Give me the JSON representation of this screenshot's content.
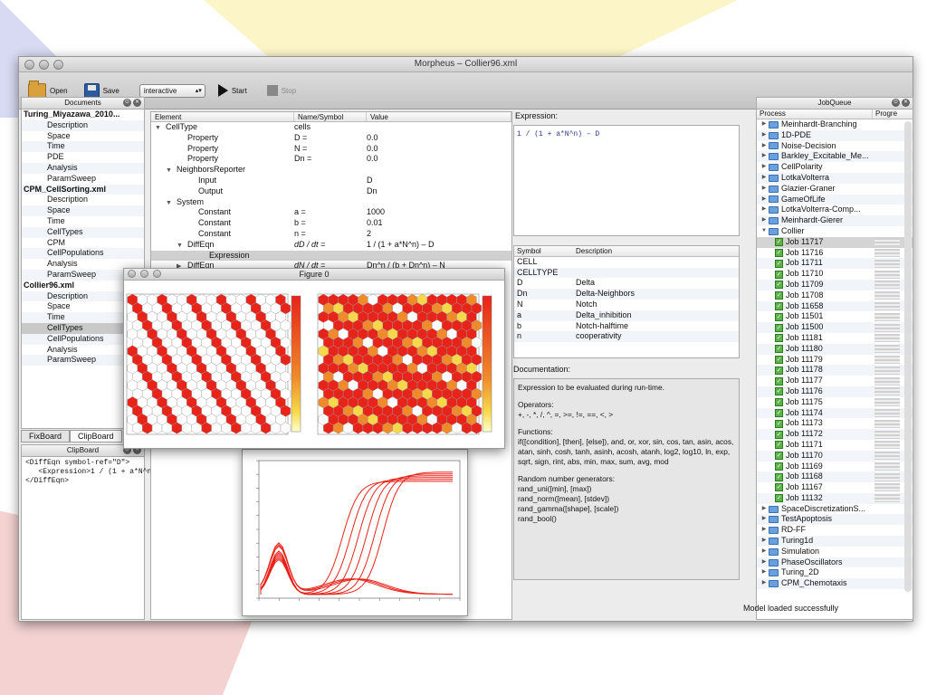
{
  "window": {
    "title": "Morpheus – Collier96.xml"
  },
  "toolbar": {
    "open": "Open",
    "save": "Save",
    "mode": "interactive",
    "start": "Start",
    "stop": "Stop"
  },
  "documents": {
    "title": "Documents",
    "items": [
      {
        "label": "Turing_Miyazawa_2010...",
        "type": "hdr"
      },
      {
        "label": "Description",
        "type": "sub"
      },
      {
        "label": "Space",
        "type": "sub"
      },
      {
        "label": "Time",
        "type": "sub"
      },
      {
        "label": "PDE",
        "type": "sub"
      },
      {
        "label": "Analysis",
        "type": "sub"
      },
      {
        "label": "ParamSweep",
        "type": "sub"
      },
      {
        "label": "CPM_CellSorting.xml",
        "type": "hdr"
      },
      {
        "label": "Description",
        "type": "sub"
      },
      {
        "label": "Space",
        "type": "sub"
      },
      {
        "label": "Time",
        "type": "sub"
      },
      {
        "label": "CellTypes",
        "type": "sub"
      },
      {
        "label": "CPM",
        "type": "sub"
      },
      {
        "label": "CellPopulations",
        "type": "sub"
      },
      {
        "label": "Analysis",
        "type": "sub"
      },
      {
        "label": "ParamSweep",
        "type": "sub"
      },
      {
        "label": "Collier96.xml",
        "type": "hdr"
      },
      {
        "label": "Description",
        "type": "sub"
      },
      {
        "label": "Space",
        "type": "sub"
      },
      {
        "label": "Time",
        "type": "sub"
      },
      {
        "label": "CellTypes",
        "type": "sub sel"
      },
      {
        "label": "CellPopulations",
        "type": "sub"
      },
      {
        "label": "Analysis",
        "type": "sub"
      },
      {
        "label": "ParamSweep",
        "type": "sub"
      }
    ]
  },
  "tabs": [
    "FixBoard",
    "ClipBoard"
  ],
  "clipboard": {
    "title": "ClipBoard",
    "content": "<DiffEqn symbol-ref=\"D\">\n   <Expression>1 / (1 + a*N^n) – D\n</DiffEqn>"
  },
  "tree": {
    "columns": [
      "Element",
      "Name/Symbol",
      "Value"
    ],
    "rows": [
      {
        "indent": 0,
        "tri": "▼",
        "el": "CellType",
        "name": "cells",
        "val": ""
      },
      {
        "indent": 2,
        "tri": "",
        "el": "Property",
        "name": "D =",
        "val": "0.0"
      },
      {
        "indent": 2,
        "tri": "",
        "el": "Property",
        "name": "N =",
        "val": "0.0"
      },
      {
        "indent": 2,
        "tri": "",
        "el": "Property",
        "name": "Dn =",
        "val": "0.0"
      },
      {
        "indent": 1,
        "tri": "▼",
        "el": "NeighborsReporter",
        "name": "",
        "val": ""
      },
      {
        "indent": 3,
        "tri": "",
        "el": "Input",
        "name": "",
        "val": "D"
      },
      {
        "indent": 3,
        "tri": "",
        "el": "Output",
        "name": "",
        "val": "Dn"
      },
      {
        "indent": 1,
        "tri": "▼",
        "el": "System",
        "name": "",
        "val": ""
      },
      {
        "indent": 3,
        "tri": "",
        "el": "Constant",
        "name": "a =",
        "val": "1000"
      },
      {
        "indent": 3,
        "tri": "",
        "el": "Constant",
        "name": "b =",
        "val": "0.01"
      },
      {
        "indent": 3,
        "tri": "",
        "el": "Constant",
        "name": "n =",
        "val": "2"
      },
      {
        "indent": 2,
        "tri": "▼",
        "el": "DiffEqn",
        "name": "dD / dt =",
        "val": "1 / (1 + a*N^n) – D"
      },
      {
        "indent": 4,
        "tri": "",
        "el": "Expression",
        "name": "",
        "val": "",
        "sel": true
      },
      {
        "indent": 2,
        "tri": "▶",
        "el": "DiffEqn",
        "name": "dN / dt =",
        "val": "Dn^n / (b + Dn^n) – N"
      }
    ]
  },
  "expression": {
    "label": "Expression:",
    "value": "1 / (1 + a*N^n) – D"
  },
  "symbols": {
    "columns": [
      "Symbol",
      "Description"
    ],
    "rows": [
      [
        "CELL",
        ""
      ],
      [
        "CELLTYPE",
        ""
      ],
      [
        "D",
        "Delta"
      ],
      [
        "Dn",
        "Delta-Neighbors"
      ],
      [
        "N",
        "Notch"
      ],
      [
        "a",
        "Delta_inhibition"
      ],
      [
        "b",
        "Notch-halftime"
      ],
      [
        "n",
        "cooperativity"
      ]
    ]
  },
  "documentation": {
    "label": "Documentation:",
    "intro": "Expression to be evaluated during run-time.",
    "operators_title": "Operators:",
    "operators": "+, -, *, /, ^, =, >=, !=, ==, <, >",
    "functions_title": "Functions:",
    "functions": "if([condition], [then], [else]), and, or, xor, sin, cos, tan, asin, acos, atan, sinh, cosh, tanh, asinh, acosh, atanh, log2, log10, ln, exp, sqrt, sign, rint, abs, min, max, sum, avg, mod",
    "random_title": "Random number generators:",
    "random": [
      "rand_uni([min], [max])",
      "rand_norm([mean], [stdev])",
      "rand_gamma([shape], [scale])",
      "rand_bool()"
    ]
  },
  "jobqueue": {
    "title": "JobQueue",
    "columns": [
      "Process",
      "Progre"
    ],
    "items": [
      {
        "label": "Meinhardt-Branching",
        "kind": "folder",
        "tri": "▶"
      },
      {
        "label": "1D-PDE",
        "kind": "folder",
        "tri": "▶"
      },
      {
        "label": "Noise-Decision",
        "kind": "folder",
        "tri": "▶"
      },
      {
        "label": "Barkley_Excitable_Me...",
        "kind": "folder",
        "tri": "▶"
      },
      {
        "label": "CellPolarity",
        "kind": "folder",
        "tri": "▶"
      },
      {
        "label": "LotkaVolterra",
        "kind": "folder",
        "tri": "▶"
      },
      {
        "label": "Glazier-Graner",
        "kind": "folder",
        "tri": "▶"
      },
      {
        "label": "GameOfLife",
        "kind": "folder",
        "tri": "▶"
      },
      {
        "label": "LotkaVolterra-Comp...",
        "kind": "folder",
        "tri": "▶"
      },
      {
        "label": "Meinhardt-Gierer",
        "kind": "folder",
        "tri": "▶"
      },
      {
        "label": "Collier",
        "kind": "folder",
        "tri": "▼"
      },
      {
        "label": "Job 11717",
        "kind": "job",
        "sel": true
      },
      {
        "label": "Job 11716",
        "kind": "job"
      },
      {
        "label": "Job 11711",
        "kind": "job"
      },
      {
        "label": "Job 11710",
        "kind": "job"
      },
      {
        "label": "Job 11709",
        "kind": "job"
      },
      {
        "label": "Job 11708",
        "kind": "job"
      },
      {
        "label": "Job 11658",
        "kind": "job"
      },
      {
        "label": "Job 11501",
        "kind": "job"
      },
      {
        "label": "Job 11500",
        "kind": "job"
      },
      {
        "label": "Job 11181",
        "kind": "job"
      },
      {
        "label": "Job 11180",
        "kind": "job"
      },
      {
        "label": "Job 11179",
        "kind": "job"
      },
      {
        "label": "Job 11178",
        "kind": "job"
      },
      {
        "label": "Job 11177",
        "kind": "job"
      },
      {
        "label": "Job 11176",
        "kind": "job"
      },
      {
        "label": "Job 11175",
        "kind": "job"
      },
      {
        "label": "Job 11174",
        "kind": "job"
      },
      {
        "label": "Job 11173",
        "kind": "job"
      },
      {
        "label": "Job 11172",
        "kind": "job"
      },
      {
        "label": "Job 11171",
        "kind": "job"
      },
      {
        "label": "Job 11170",
        "kind": "job"
      },
      {
        "label": "Job 11169",
        "kind": "job"
      },
      {
        "label": "Job 11168",
        "kind": "job"
      },
      {
        "label": "Job 11167",
        "kind": "job"
      },
      {
        "label": "Job 11132",
        "kind": "job"
      },
      {
        "label": "SpaceDiscretizationS...",
        "kind": "folder",
        "tri": "▶"
      },
      {
        "label": "TestApoptosis",
        "kind": "folder",
        "tri": "▶"
      },
      {
        "label": "RD-FF",
        "kind": "folder",
        "tri": "▶"
      },
      {
        "label": "Turing1d",
        "kind": "folder",
        "tri": "▶"
      },
      {
        "label": "Simulation",
        "kind": "folder",
        "tri": "▶"
      },
      {
        "label": "PhaseOscillators",
        "kind": "folder",
        "tri": "▶"
      },
      {
        "label": "Turing_2D",
        "kind": "folder",
        "tri": "▶"
      },
      {
        "label": "CPM_Chemotaxis",
        "kind": "folder",
        "tri": "▶"
      }
    ]
  },
  "status": "Model loaded successfully",
  "figure0": {
    "title": "Figure 0"
  },
  "colors": {
    "red": "#e8231a",
    "orange": "#f08a2a",
    "yellow": "#f7d84a"
  }
}
